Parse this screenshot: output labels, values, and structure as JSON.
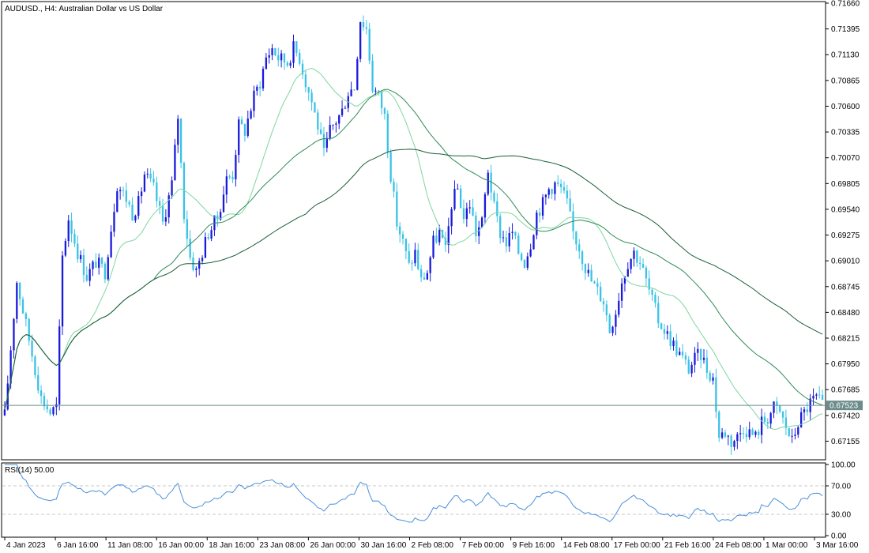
{
  "chart_data": [
    {
      "type": "candlestick",
      "title": "AUDUSD., H4:  Australian Dollar vs US Dollar",
      "symbol": "AUDUSD.",
      "timeframe": "H4",
      "ylim": [
        0.6698,
        0.7166
      ],
      "price_ticks": [
        "0.71660",
        "0.71395",
        "0.71130",
        "0.70865",
        "0.70600",
        "0.70335",
        "0.70070",
        "0.69805",
        "0.69540",
        "0.69275",
        "0.69010",
        "0.68745",
        "0.68480",
        "0.68215",
        "0.67950",
        "0.67685",
        "0.67420",
        "0.67155"
      ],
      "current_price": 0.67523,
      "current_price_label": "0.67523",
      "x_ticks": [
        "4 Jan 2023",
        "6 Jan 16:00",
        "11 Jan 08:00",
        "16 Jan 00:00",
        "18 Jan 16:00",
        "23 Jan 08:00",
        "26 Jan 00:00",
        "30 Jan 16:00",
        "2 Feb 08:00",
        "7 Feb 00:00",
        "9 Feb 16:00",
        "14 Feb 08:00",
        "17 Feb 00:00",
        "21 Feb 16:00",
        "24 Feb 08:00",
        "1 Mar 00:00",
        "3 Mar 16:00"
      ],
      "price_path_anchors": [
        [
          0,
          0.6742
        ],
        [
          4,
          0.688
        ],
        [
          8,
          0.682
        ],
        [
          12,
          0.676
        ],
        [
          15,
          0.6745
        ],
        [
          17,
          0.675
        ],
        [
          19,
          0.6905
        ],
        [
          21,
          0.6945
        ],
        [
          24,
          0.691
        ],
        [
          27,
          0.6885
        ],
        [
          30,
          0.69
        ],
        [
          33,
          0.689
        ],
        [
          35,
          0.6935
        ],
        [
          37,
          0.698
        ],
        [
          40,
          0.6965
        ],
        [
          42,
          0.695
        ],
        [
          44,
          0.696
        ],
        [
          46,
          0.699
        ],
        [
          49,
          0.6975
        ],
        [
          52,
          0.694
        ],
        [
          55,
          0.698
        ],
        [
          57,
          0.705
        ],
        [
          59,
          0.695
        ],
        [
          61,
          0.6905
        ],
        [
          63,
          0.689
        ],
        [
          65,
          0.691
        ],
        [
          67,
          0.693
        ],
        [
          70,
          0.6945
        ],
        [
          73,
          0.6985
        ],
        [
          75,
          0.699
        ],
        [
          77,
          0.704
        ],
        [
          79,
          0.7035
        ],
        [
          82,
          0.707
        ],
        [
          84,
          0.7085
        ],
        [
          86,
          0.711
        ],
        [
          88,
          0.712
        ],
        [
          90,
          0.711
        ],
        [
          93,
          0.7105
        ],
        [
          95,
          0.712
        ],
        [
          97,
          0.711
        ],
        [
          99,
          0.7085
        ],
        [
          101,
          0.7065
        ],
        [
          103,
          0.704
        ],
        [
          105,
          0.701
        ],
        [
          107,
          0.7035
        ],
        [
          109,
          0.7045
        ],
        [
          111,
          0.7055
        ],
        [
          113,
          0.7075
        ],
        [
          115,
          0.708
        ],
        [
          117,
          0.715
        ],
        [
          119,
          0.714
        ],
        [
          121,
          0.708
        ],
        [
          123,
          0.707
        ],
        [
          125,
          0.705
        ],
        [
          127,
          0.699
        ],
        [
          129,
          0.694
        ],
        [
          131,
          0.692
        ],
        [
          133,
          0.6895
        ],
        [
          135,
          0.691
        ],
        [
          137,
          0.688
        ],
        [
          139,
          0.689
        ],
        [
          141,
          0.692
        ],
        [
          143,
          0.693
        ],
        [
          145,
          0.691
        ],
        [
          147,
          0.696
        ],
        [
          149,
          0.6975
        ],
        [
          151,
          0.6945
        ],
        [
          153,
          0.696
        ],
        [
          155,
          0.693
        ],
        [
          157,
          0.694
        ],
        [
          159,
          0.6995
        ],
        [
          161,
          0.6955
        ],
        [
          163,
          0.693
        ],
        [
          165,
          0.692
        ],
        [
          167,
          0.693
        ],
        [
          169,
          0.691
        ],
        [
          171,
          0.69
        ],
        [
          173,
          0.692
        ],
        [
          175,
          0.695
        ],
        [
          177,
          0.696
        ],
        [
          179,
          0.6975
        ],
        [
          181,
          0.698
        ],
        [
          183,
          0.6975
        ],
        [
          185,
          0.696
        ],
        [
          187,
          0.693
        ],
        [
          189,
          0.6915
        ],
        [
          191,
          0.6895
        ],
        [
          193,
          0.688
        ],
        [
          195,
          0.687
        ],
        [
          197,
          0.686
        ],
        [
          199,
          0.683
        ],
        [
          201,
          0.685
        ],
        [
          203,
          0.688
        ],
        [
          205,
          0.69
        ],
        [
          207,
          0.691
        ],
        [
          209,
          0.69
        ],
        [
          211,
          0.688
        ],
        [
          213,
          0.686
        ],
        [
          215,
          0.684
        ],
        [
          217,
          0.683
        ],
        [
          219,
          0.682
        ],
        [
          221,
          0.681
        ],
        [
          223,
          0.68
        ],
        [
          225,
          0.679
        ],
        [
          227,
          0.68
        ],
        [
          229,
          0.6805
        ],
        [
          231,
          0.679
        ],
        [
          233,
          0.678
        ],
        [
          235,
          0.672
        ],
        [
          237,
          0.6725
        ],
        [
          239,
          0.6715
        ],
        [
          241,
          0.672
        ],
        [
          243,
          0.673
        ],
        [
          245,
          0.6725
        ],
        [
          247,
          0.672
        ],
        [
          249,
          0.6735
        ],
        [
          251,
          0.674
        ],
        [
          253,
          0.675
        ],
        [
          255,
          0.6745
        ],
        [
          257,
          0.673
        ],
        [
          259,
          0.6715
        ],
        [
          261,
          0.6735
        ],
        [
          263,
          0.6745
        ],
        [
          265,
          0.6755
        ],
        [
          267,
          0.676
        ],
        [
          269,
          0.6752
        ]
      ],
      "ma_periods": [
        20,
        50,
        100
      ],
      "colors": {
        "bull": "#1a1adb",
        "bear": "#39c3e6",
        "ma_fast": "#7ed6a0",
        "ma_mid": "#2e8b57",
        "ma_slow": "#1b5e36",
        "current_line": "#6c8c8c",
        "rsi_line": "#4a90d9",
        "grid_level": "#c8c8c8"
      },
      "grid": false
    },
    {
      "type": "line",
      "title": "RSI(14) 50.00",
      "ylim": [
        0,
        100
      ],
      "y_ticks": [
        "100.00",
        "70.00",
        "30.00",
        "0.00"
      ],
      "levels": [
        70,
        30
      ],
      "period": 14
    }
  ]
}
